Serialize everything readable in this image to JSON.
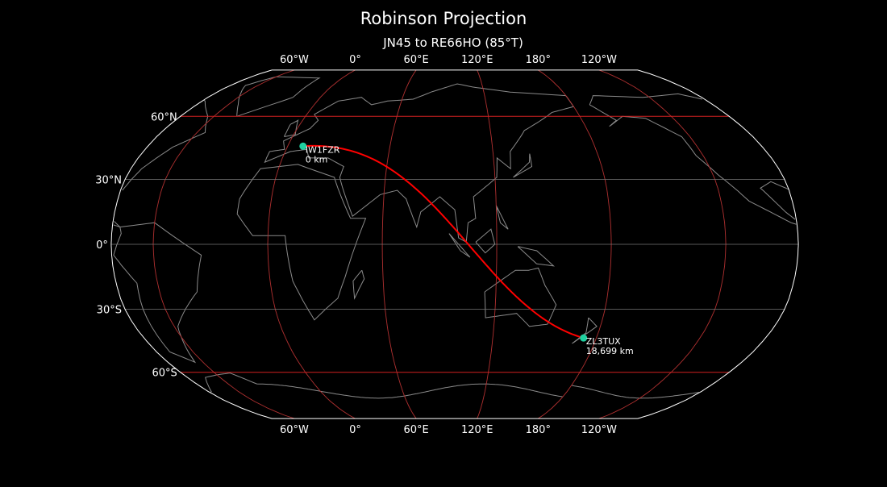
{
  "title": "Robinson Projection",
  "subtitle": "JN45 to RE66HO (85°T)",
  "projection": {
    "type": "robinson",
    "central_longitude": 98
  },
  "meridians": [
    {
      "lon": -60,
      "label": "60°W"
    },
    {
      "lon": 0,
      "label": "0°"
    },
    {
      "lon": 60,
      "label": "60°E"
    },
    {
      "lon": 120,
      "label": "120°E"
    },
    {
      "lon": 180,
      "label": "180°"
    },
    {
      "lon": -120,
      "label": "120°W"
    }
  ],
  "parallels": [
    {
      "lat": 60,
      "label": "60°N",
      "major": true
    },
    {
      "lat": 30,
      "label": "30°N",
      "major": false
    },
    {
      "lat": 0,
      "label": "0°",
      "major": false
    },
    {
      "lat": -30,
      "label": "30°S",
      "major": false
    },
    {
      "lat": -60,
      "label": "60°S",
      "major": true
    }
  ],
  "stations": [
    {
      "call": "IW1FZR",
      "distance": "0 km",
      "lat": 45.5,
      "lon": 9.0
    },
    {
      "call": "ZL3TUX",
      "distance": "18,699 km",
      "lat": -43.4,
      "lon": 172.6
    }
  ],
  "colors": {
    "path": "#ff0000",
    "station": "#1fd1a0",
    "meridian": "#b03030",
    "parallel_major": "#d02020",
    "parallel_minor": "#777777",
    "coast": "#8a8a8a",
    "border": "#ffffff"
  }
}
